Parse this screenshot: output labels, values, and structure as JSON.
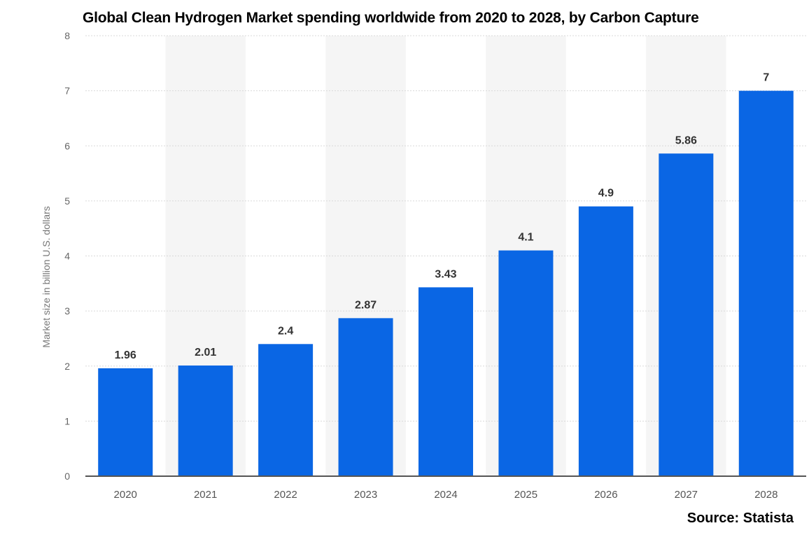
{
  "source": "Source: Statista",
  "chart_data": {
    "type": "bar",
    "title": "Global Clean Hydrogen Market spending worldwide from 2020 to 2028, by Carbon Capture",
    "xlabel": "",
    "ylabel": "Market size in billion U.S. dollars",
    "categories": [
      "2020",
      "2021",
      "2022",
      "2023",
      "2024",
      "2025",
      "2026",
      "2027",
      "2028"
    ],
    "values": [
      1.96,
      2.01,
      2.4,
      2.87,
      3.43,
      4.1,
      4.9,
      5.86,
      7
    ],
    "data_labels": [
      "1.96",
      "2.01",
      "2.4",
      "2.87",
      "3.43",
      "4.1",
      "4.9",
      "5.86",
      "7"
    ],
    "ylim": [
      0,
      8
    ],
    "yticks": [
      "0",
      "1",
      "2",
      "3",
      "4",
      "5",
      "6",
      "7",
      "8"
    ],
    "grid": true,
    "legend": "none",
    "colors": {
      "bar": "#0a66e4",
      "band": "#f5f5f5",
      "grid": "#d9d9d9",
      "axis": "#555555"
    }
  }
}
